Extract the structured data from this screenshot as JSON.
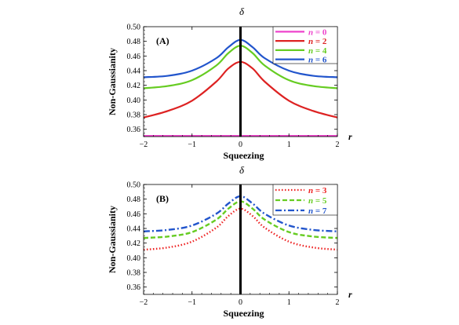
{
  "chart_data": [
    {
      "type": "line",
      "panel_label": "(A)",
      "title": "δ",
      "xlabel": "Squeezing",
      "ylabel": "Non-Gaussianity",
      "x_var_label": "r",
      "xlim": [
        -2,
        2
      ],
      "ylim": [
        0.35,
        0.5
      ],
      "xticks": [
        -2,
        -1,
        0,
        1,
        2
      ],
      "yticks": [
        0.36,
        0.38,
        0.4,
        0.42,
        0.44,
        0.46,
        0.48,
        0.5
      ],
      "vertical_line_x": 0,
      "legend_position": "top-right",
      "series": [
        {
          "name": "n = 0",
          "n_label": "n",
          "n_value": "= 0",
          "color": "#ee44cc",
          "dash": "solid",
          "x": [
            -2,
            -1.5,
            -1,
            -0.5,
            -0.25,
            0,
            0.25,
            0.5,
            1,
            1.5,
            2
          ],
          "y": [
            0.351,
            0.351,
            0.351,
            0.351,
            0.351,
            0.351,
            0.351,
            0.351,
            0.351,
            0.351,
            0.351
          ]
        },
        {
          "name": "n = 2",
          "n_label": "n",
          "n_value": "= 2",
          "color": "#dd2222",
          "dash": "solid",
          "x": [
            -2,
            -1.5,
            -1,
            -0.5,
            -0.25,
            0,
            0.25,
            0.5,
            1,
            1.5,
            2
          ],
          "y": [
            0.376,
            0.385,
            0.399,
            0.425,
            0.443,
            0.452,
            0.443,
            0.425,
            0.399,
            0.385,
            0.376
          ]
        },
        {
          "name": "n = 4",
          "n_label": "n",
          "n_value": "= 4",
          "color": "#66cc22",
          "dash": "solid",
          "x": [
            -2,
            -1.5,
            -1,
            -0.5,
            -0.25,
            0,
            0.25,
            0.5,
            1,
            1.5,
            2
          ],
          "y": [
            0.416,
            0.419,
            0.427,
            0.447,
            0.464,
            0.474,
            0.464,
            0.447,
            0.427,
            0.419,
            0.416
          ]
        },
        {
          "name": "n = 6",
          "n_label": "n",
          "n_value": "= 6",
          "color": "#2255cc",
          "dash": "solid",
          "x": [
            -2,
            -1.5,
            -1,
            -0.5,
            -0.25,
            0,
            0.25,
            0.5,
            1,
            1.5,
            2
          ],
          "y": [
            0.431,
            0.433,
            0.44,
            0.457,
            0.472,
            0.482,
            0.472,
            0.457,
            0.44,
            0.433,
            0.431
          ]
        }
      ]
    },
    {
      "type": "line",
      "panel_label": "(B)",
      "title": "δ",
      "xlabel": "Squeezing",
      "ylabel": "Non-Gaussianity",
      "x_var_label": "r",
      "xlim": [
        -2,
        2
      ],
      "ylim": [
        0.35,
        0.5
      ],
      "xticks": [
        -2,
        -1,
        0,
        1,
        2
      ],
      "yticks": [
        0.36,
        0.38,
        0.4,
        0.42,
        0.44,
        0.46,
        0.48,
        0.5
      ],
      "vertical_line_x": 0,
      "legend_position": "top-right",
      "series": [
        {
          "name": "n = 3",
          "n_label": "n",
          "n_value": "= 3",
          "color": "#ee2222",
          "dash": "dotted",
          "x": [
            -2,
            -1.5,
            -1,
            -0.5,
            -0.25,
            0,
            0.25,
            0.5,
            1,
            1.5,
            2
          ],
          "y": [
            0.411,
            0.414,
            0.422,
            0.441,
            0.457,
            0.467,
            0.457,
            0.441,
            0.422,
            0.414,
            0.411
          ]
        },
        {
          "name": "n = 5",
          "n_label": "n",
          "n_value": "= 5",
          "color": "#66cc22",
          "dash": "dashed",
          "x": [
            -2,
            -1.5,
            -1,
            -0.5,
            -0.25,
            0,
            0.25,
            0.5,
            1,
            1.5,
            2
          ],
          "y": [
            0.427,
            0.429,
            0.435,
            0.452,
            0.467,
            0.477,
            0.467,
            0.452,
            0.435,
            0.429,
            0.427
          ]
        },
        {
          "name": "n = 7",
          "n_label": "n",
          "n_value": "= 7",
          "color": "#2255cc",
          "dash": "dashdot",
          "x": [
            -2,
            -1.5,
            -1,
            -0.5,
            -0.25,
            0,
            0.25,
            0.5,
            1,
            1.5,
            2
          ],
          "y": [
            0.436,
            0.438,
            0.444,
            0.46,
            0.474,
            0.484,
            0.474,
            0.46,
            0.444,
            0.438,
            0.436
          ]
        }
      ]
    }
  ]
}
